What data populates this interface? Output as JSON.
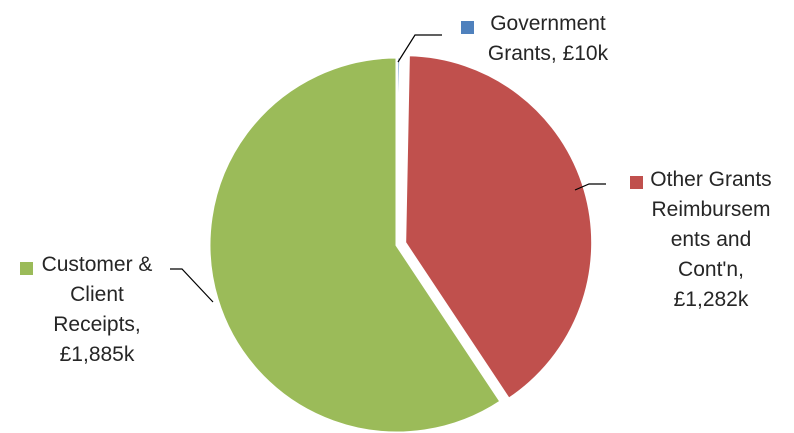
{
  "chart_data": {
    "type": "pie",
    "slices": [
      {
        "name": "Government Grants",
        "value": 10,
        "value_label": "£10k",
        "color": "#4F81BD",
        "label_lines": [
          "Government",
          "Grants, £10k"
        ]
      },
      {
        "name": "Other Grants Reimbursements and Cont'n",
        "value": 1282,
        "value_label": "£1,282k",
        "color": "#C0504D",
        "label_lines": [
          "Other Grants",
          "Reimbursem",
          "ents and",
          "Cont'n,",
          "£1,282k"
        ]
      },
      {
        "name": "Customer & Client Receipts",
        "value": 1885,
        "value_label": "£1,885k",
        "color": "#9BBB59",
        "label_lines": [
          "Customer &",
          "Client",
          "Receipts,",
          "£1,885k"
        ]
      }
    ],
    "legend_style": "callout labels with color markers"
  }
}
